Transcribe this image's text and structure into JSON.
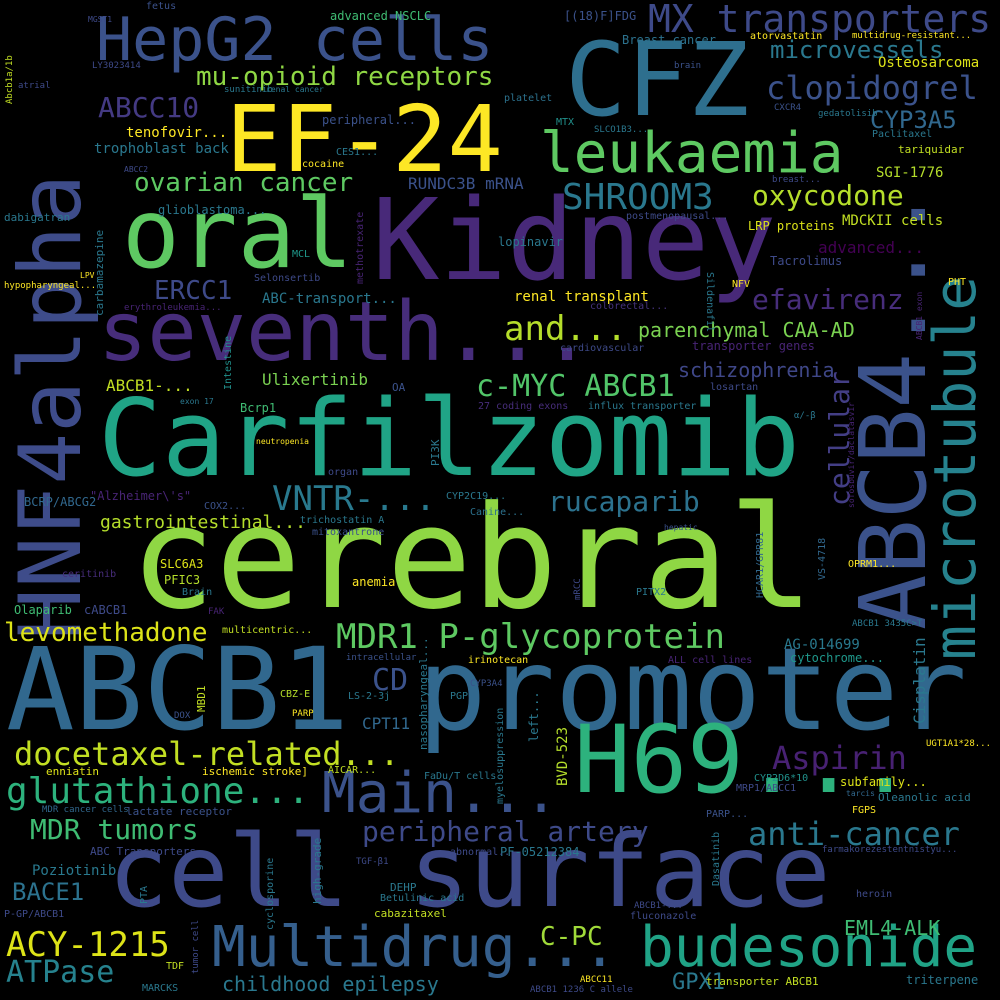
{
  "words": [
    {
      "text": "cerebral",
      "color": "#8fd744"
    },
    {
      "text": "Carfilzomib",
      "color": "#20a486"
    },
    {
      "text": "Kidney",
      "color": "#482979"
    },
    {
      "text": "cell surface",
      "color": "#3e4a89"
    },
    {
      "text": "ABCB1 promoter",
      "color": "#31688e"
    },
    {
      "text": "HNF4alpha",
      "color": "#3e4c8a"
    },
    {
      "text": "CFZ",
      "color": "#2e6f8e"
    },
    {
      "text": "EF-24",
      "color": "#fde725"
    },
    {
      "text": "ABCB4...",
      "color": "#3b528b"
    },
    {
      "text": "oral",
      "color": "#5ec962"
    },
    {
      "text": "seventh...",
      "color": "#472d7b"
    },
    {
      "text": "H69...",
      "color": "#2db27d"
    },
    {
      "text": "HepG2 cells",
      "color": "#3b528b"
    },
    {
      "text": "microtubule",
      "color": "#26828e"
    },
    {
      "text": "Multidrug...",
      "color": "#355f8d"
    },
    {
      "text": "budesonide",
      "color": "#20a386"
    },
    {
      "text": "leukaemia",
      "color": "#5ec962"
    },
    {
      "text": "Main...",
      "color": "#3b528b"
    },
    {
      "text": "MX transporters",
      "color": "#3e4a89"
    },
    {
      "text": "SHROOM3",
      "color": "#2a788e"
    },
    {
      "text": "MDR1 P-glycoprotein",
      "color": "#5ec962"
    },
    {
      "text": "glutathione...",
      "color": "#2db27d"
    },
    {
      "text": "docetaxel-related...",
      "color": "#c2df23"
    },
    {
      "text": "clopidogrel",
      "color": "#3b528b"
    },
    {
      "text": "oxycodone",
      "color": "#b5de2b"
    },
    {
      "text": "Aspirin",
      "color": "#482173"
    },
    {
      "text": "anti-cancer",
      "color": "#2a788e"
    },
    {
      "text": "ACY-1215",
      "color": "#dde318"
    },
    {
      "text": "rucaparib",
      "color": "#2c728e"
    },
    {
      "text": "VNTR-...",
      "color": "#29798e"
    },
    {
      "text": "ovarian cancer",
      "color": "#5ec962"
    },
    {
      "text": "mu-opioid receptors",
      "color": "#8fd744"
    },
    {
      "text": "ABCC10",
      "color": "#443a83"
    },
    {
      "text": "efavirenz",
      "color": "#472d7b"
    },
    {
      "text": "and...",
      "color": "#b5de2b"
    },
    {
      "text": "c-MYC ABCB1",
      "color": "#52c569"
    },
    {
      "text": "peripheral artery",
      "color": "#3e4a89"
    },
    {
      "text": "MDR tumors",
      "color": "#3fbc73"
    },
    {
      "text": "levomethadone",
      "color": "#dde318"
    },
    {
      "text": "cellular",
      "color": "#433e85"
    },
    {
      "text": "ATPase",
      "color": "#26828e"
    },
    {
      "text": "CYP3A5",
      "color": "#31688e"
    },
    {
      "text": "microvessels",
      "color": "#2a788e"
    },
    {
      "text": "C-PC",
      "color": "#a0da39"
    },
    {
      "text": "BACE1",
      "color": "#2c728e"
    },
    {
      "text": "ERCC1",
      "color": "#3e4a89"
    },
    {
      "text": "CD",
      "color": "#3b528b"
    },
    {
      "text": "childhood epilepsy",
      "color": "#2a788e"
    },
    {
      "text": "parenchymal CAA-AD",
      "color": "#7ad151"
    },
    {
      "text": "schizophrenia",
      "color": "#3f4788"
    },
    {
      "text": "gastrointestinal...",
      "color": "#b5de2b"
    },
    {
      "text": "GPX1",
      "color": "#2a788e"
    },
    {
      "text": "EML4-ALK",
      "color": "#3fbc73"
    },
    {
      "text": "RUNDC3B mRNA",
      "color": "#3b528b"
    },
    {
      "text": "Ulixertinib",
      "color": "#7ad151"
    },
    {
      "text": "advanced...",
      "color": "#440154"
    },
    {
      "text": "renal transplant",
      "color": "#fde725"
    },
    {
      "text": "Osteosarcoma",
      "color": "#dde318"
    },
    {
      "text": "tenofovir...",
      "color": "#fde725"
    },
    {
      "text": "trophoblast back",
      "color": "#2a788e"
    },
    {
      "text": "ABCB1-...",
      "color": "#c2df23"
    },
    {
      "text": "SGI-1776",
      "color": "#b5de2b"
    },
    {
      "text": "MDCKII cells",
      "color": "#c2df23"
    },
    {
      "text": "ABC-transport...",
      "color": "#2a788e"
    },
    {
      "text": "CPT11",
      "color": "#31688e"
    },
    {
      "text": "Cisplatin",
      "color": "#2a788e"
    },
    {
      "text": "AG-014699",
      "color": "#29798e"
    },
    {
      "text": "cytochrome...",
      "color": "#1f988b"
    },
    {
      "text": "glioblastoma...",
      "color": "#2a788e"
    },
    {
      "text": "lopinavir",
      "color": "#2a788e"
    },
    {
      "text": "Tacrolimus",
      "color": "#3e4a89"
    },
    {
      "text": "LRP proteins",
      "color": "#dde318"
    },
    {
      "text": "BVD-523",
      "color": "#b5de2b"
    },
    {
      "text": "Poziotinib",
      "color": "#29798e"
    },
    {
      "text": "PF-05212384",
      "color": "#2a788e"
    },
    {
      "text": "subfamily...",
      "color": "#dde318"
    },
    {
      "text": "Breast cancer",
      "color": "#2c728e"
    },
    {
      "text": "atorvastatin",
      "color": "#fde725"
    },
    {
      "text": "advanced NSCLC",
      "color": "#3fbc73"
    },
    {
      "text": "[(18)F]FDG",
      "color": "#3b528b"
    },
    {
      "text": "fetus",
      "color": "#3b528b"
    },
    {
      "text": "MTX",
      "color": "#21918c"
    },
    {
      "text": "platelet",
      "color": "#2c728e"
    },
    {
      "text": "peripheral...",
      "color": "#3b528b"
    },
    {
      "text": "methotrexate",
      "color": "#482475"
    },
    {
      "text": "Selonsertib",
      "color": "#3e4a89"
    },
    {
      "text": "MCL",
      "color": "#1f988b"
    },
    {
      "text": "cocaine",
      "color": "#fde725"
    },
    {
      "text": "CES1...",
      "color": "#2a788e"
    },
    {
      "text": "carbamazepine",
      "color": "#2a788e"
    },
    {
      "text": "colorectal...",
      "color": "#46337e"
    },
    {
      "text": "cardiovascular",
      "color": "#3e4a89"
    },
    {
      "text": "transporter genes",
      "color": "#482475"
    },
    {
      "text": "losartan",
      "color": "#3e4a89"
    },
    {
      "text": "Sildenafil",
      "color": "#2a788e"
    },
    {
      "text": "NFV",
      "color": "#fde725"
    },
    {
      "text": "PHT",
      "color": "#fde725"
    },
    {
      "text": "Bcrp1",
      "color": "#3fbc73"
    },
    {
      "text": "Intestine",
      "color": "#21918c"
    },
    {
      "text": "exon 17",
      "color": "#2a788e"
    },
    {
      "text": "OA",
      "color": "#3b528b"
    },
    {
      "text": "27 coding exons",
      "color": "#472d7b"
    },
    {
      "text": "influx transporter",
      "color": "#2a788e"
    },
    {
      "text": "BCRP/ABCG2",
      "color": "#31688e"
    },
    {
      "text": "\"Alzheimer\\'s\"",
      "color": "#482475"
    },
    {
      "text": "COX2...",
      "color": "#3b528b"
    },
    {
      "text": "organ",
      "color": "#3e4a89"
    },
    {
      "text": "PI3K",
      "color": "#2a788e"
    },
    {
      "text": "CYP2C19...",
      "color": "#2a788e"
    },
    {
      "text": "Canine...",
      "color": "#2c728e"
    },
    {
      "text": "trichostatin A",
      "color": "#2a788e"
    },
    {
      "text": "mitoxantrone",
      "color": "#3b528b"
    },
    {
      "text": "SLC6A3",
      "color": "#dde318"
    },
    {
      "text": "PFIC3",
      "color": "#b5de2b"
    },
    {
      "text": "Brain",
      "color": "#2a788e"
    },
    {
      "text": "ceritinib",
      "color": "#472d7b"
    },
    {
      "text": "anemia",
      "color": "#fde725"
    },
    {
      "text": "Olaparib",
      "color": "#3fbc73"
    },
    {
      "text": "cABCB1",
      "color": "#3e4a89"
    },
    {
      "text": "FAK",
      "color": "#482475"
    },
    {
      "text": "multicentric...",
      "color": "#c2df23"
    },
    {
      "text": "intracellular",
      "color": "#3b528b"
    },
    {
      "text": "irinotecan",
      "color": "#fde725"
    },
    {
      "text": "CYP3A4",
      "color": "#3b528b"
    },
    {
      "text": "PGP",
      "color": "#2a788e"
    },
    {
      "text": "LS-2-3j",
      "color": "#2a788e"
    },
    {
      "text": "CBZ-E",
      "color": "#b5de2b"
    },
    {
      "text": "PARP",
      "color": "#fde725"
    },
    {
      "text": "MBD1",
      "color": "#c2df23"
    },
    {
      "text": "DOX",
      "color": "#3b528b"
    },
    {
      "text": "nasopharyngeal...",
      "color": "#2a788e"
    },
    {
      "text": "left...",
      "color": "#2a788e"
    },
    {
      "text": "myelosuppression",
      "color": "#2a788e"
    },
    {
      "text": "enniatin",
      "color": "#dde318"
    },
    {
      "text": "ischemic stroke]",
      "color": "#fde725"
    },
    {
      "text": "AICAR...",
      "color": "#c2df23"
    },
    {
      "text": "FaDu/T cells",
      "color": "#2a788e"
    },
    {
      "text": "MDR cancer cells",
      "color": "#31688e"
    },
    {
      "text": "lactate receptor",
      "color": "#3b528b"
    },
    {
      "text": "ABC Transporters",
      "color": "#3e4a89"
    },
    {
      "text": "abnormal...",
      "color": "#3e4a89"
    },
    {
      "text": "PTA",
      "color": "#2a788e"
    },
    {
      "text": "cyclosporine",
      "color": "#2a788e"
    },
    {
      "text": "high-grade",
      "color": "#2a788e"
    },
    {
      "text": "TGF-β1",
      "color": "#3e4a89"
    },
    {
      "text": "DEHP",
      "color": "#2a788e"
    },
    {
      "text": "Betulinic acid",
      "color": "#2a788e"
    },
    {
      "text": "cabazitaxel",
      "color": "#c2df23"
    },
    {
      "text": "fluconazole",
      "color": "#3e4a89"
    },
    {
      "text": "ABCB1-...",
      "color": "#3e4a89"
    },
    {
      "text": "Dasatinib",
      "color": "#2a788e"
    },
    {
      "text": "P-GP/ABCB1",
      "color": "#3e4a89"
    },
    {
      "text": "TDF",
      "color": "#c2df23"
    },
    {
      "text": "tumor cell",
      "color": "#3e4a89"
    },
    {
      "text": "MARCKS",
      "color": "#2a788e"
    },
    {
      "text": "ABCC11",
      "color": "#fde725"
    },
    {
      "text": "ABCB1 1236 C allele",
      "color": "#3e4a89"
    },
    {
      "text": "transporter ABCB1",
      "color": "#c2df23"
    },
    {
      "text": "triterpene",
      "color": "#2a788e"
    },
    {
      "text": "heroin",
      "color": "#3e4a89"
    },
    {
      "text": "farmakorezestentnistyu...",
      "color": "#3e4a89"
    },
    {
      "text": "FGPS",
      "color": "#fde725"
    },
    {
      "text": "Oleanolic acid",
      "color": "#2a788e"
    },
    {
      "text": "UGT1A1*28...",
      "color": "#fde725"
    },
    {
      "text": "CYP2D6*10",
      "color": "#21918c"
    },
    {
      "text": "MRP1/ABCC1",
      "color": "#3e4a89"
    },
    {
      "text": "PARP...",
      "color": "#3b528b"
    },
    {
      "text": "tarcis",
      "color": "#31688e"
    },
    {
      "text": "ALL cell lines",
      "color": "#482475"
    },
    {
      "text": "ABCB1 3435C>T",
      "color": "#2a788e"
    },
    {
      "text": "OPRM1...",
      "color": "#fde725"
    },
    {
      "text": "VS-4718",
      "color": "#31688e"
    },
    {
      "text": "HCAR1/GPR81",
      "color": "#31688e"
    },
    {
      "text": "hepatic",
      "color": "#3b528b"
    },
    {
      "text": "mRCC",
      "color": "#3e4a89"
    },
    {
      "text": "PITX2",
      "color": "#2a788e"
    },
    {
      "text": "α/-β",
      "color": "#2a788e"
    },
    {
      "text": "gedatolisib",
      "color": "#2a788e"
    },
    {
      "text": "CXCR4",
      "color": "#3b528b"
    },
    {
      "text": "Paclitaxel",
      "color": "#2a788e"
    },
    {
      "text": "tariquidar",
      "color": "#c2df23"
    },
    {
      "text": "breast...",
      "color": "#3e4a89"
    },
    {
      "text": "postmenopausal...",
      "color": "#3e4a89"
    },
    {
      "text": "multidrug-resistant...",
      "color": "#fde725"
    },
    {
      "text": "brain",
      "color": "#3b528b"
    },
    {
      "text": "SLCO1B3...",
      "color": "#2a788e"
    },
    {
      "text": "renal cancer",
      "color": "#2a788e"
    },
    {
      "text": "sunitinib",
      "color": "#2a788e"
    },
    {
      "text": "MGST1",
      "color": "#3e4a89"
    },
    {
      "text": "LY3023414",
      "color": "#3e4a89"
    },
    {
      "text": "atrial",
      "color": "#3e4a89"
    },
    {
      "text": "Abcb1a/1b",
      "color": "#c2df23"
    },
    {
      "text": "ABCC2",
      "color": "#3e4a89"
    },
    {
      "text": "dabigatran",
      "color": "#2a788e"
    },
    {
      "text": "hypopharyngeal...",
      "color": "#fde725"
    },
    {
      "text": "LPV",
      "color": "#fde725"
    },
    {
      "text": "erythroleukemia...",
      "color": "#482475"
    },
    {
      "text": "neutropenia",
      "color": "#fde725"
    },
    {
      "text": "sofosbuvir/daclatasvir",
      "color": "#482475"
    },
    {
      "text": "ABCB1 exon",
      "color": "#482475"
    }
  ]
}
